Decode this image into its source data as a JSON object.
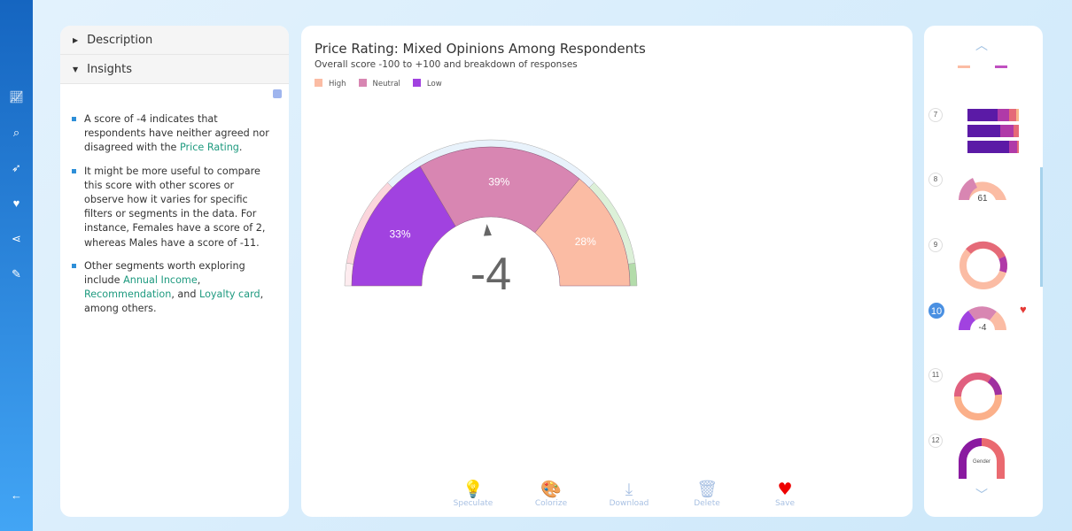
{
  "rail": {
    "icons": [
      "chart-line-icon",
      "search-icon",
      "rocket-icon",
      "heart-icon",
      "share-icon",
      "edit-icon",
      "arrow-left-icon"
    ]
  },
  "left": {
    "description_label": "Description",
    "insights_label": "Insights",
    "insights": [
      {
        "parts": [
          {
            "t": "A score of -4 indicates that respondents have neither agreed nor disagreed with the "
          },
          {
            "t": "Price Rating",
            "link": true
          },
          {
            "t": "."
          }
        ]
      },
      {
        "parts": [
          {
            "t": "It might be more useful to compare this score with other scores or observe how it varies for specific filters or segments in the data. For instance, Females have a score of 2, whereas Males have a score of -11."
          }
        ]
      },
      {
        "parts": [
          {
            "t": "Other segments worth exploring include "
          },
          {
            "t": "Annual Income",
            "link": true
          },
          {
            "t": ", "
          },
          {
            "t": "Recommendation",
            "link": true
          },
          {
            "t": ", and "
          },
          {
            "t": "Loyalty card",
            "link": true
          },
          {
            "t": ", among others."
          }
        ]
      }
    ]
  },
  "chart_data": {
    "type": "gauge",
    "title": "Price Rating: Mixed Opinions Among Respondents",
    "subtitle": "Overall score -100 to +100 and breakdown of responses",
    "legend": [
      {
        "name": "High",
        "color": "#fbbca4"
      },
      {
        "name": "Neutral",
        "color": "#d886b2"
      },
      {
        "name": "Low",
        "color": "#a142e0"
      }
    ],
    "segments": [
      {
        "name": "Low",
        "value": 33,
        "label": "33%",
        "color": "#a142e0"
      },
      {
        "name": "Neutral",
        "value": 39,
        "label": "39%",
        "color": "#d886b2"
      },
      {
        "name": "High",
        "value": 28,
        "label": "28%",
        "color": "#fbbca4"
      }
    ],
    "score": -4,
    "score_label": "-4",
    "range": [
      -100,
      100
    ]
  },
  "actions": [
    {
      "label": "Speculate",
      "icon": "lightbulb-icon",
      "glyph": "💡"
    },
    {
      "label": "Colorize",
      "icon": "palette-icon",
      "glyph": "🎨"
    },
    {
      "label": "Download",
      "icon": "download-icon",
      "glyph": "⤓"
    },
    {
      "label": "Delete",
      "icon": "trash-icon",
      "glyph": "🗑"
    },
    {
      "label": "Save",
      "icon": "heart-icon",
      "glyph": "♥"
    }
  ],
  "thumbs": {
    "items": [
      "7",
      "8",
      "9",
      "10",
      "11",
      "12"
    ],
    "t8_value": "61",
    "t10_value": "-4",
    "t12_center": "Gender",
    "active": "10"
  }
}
